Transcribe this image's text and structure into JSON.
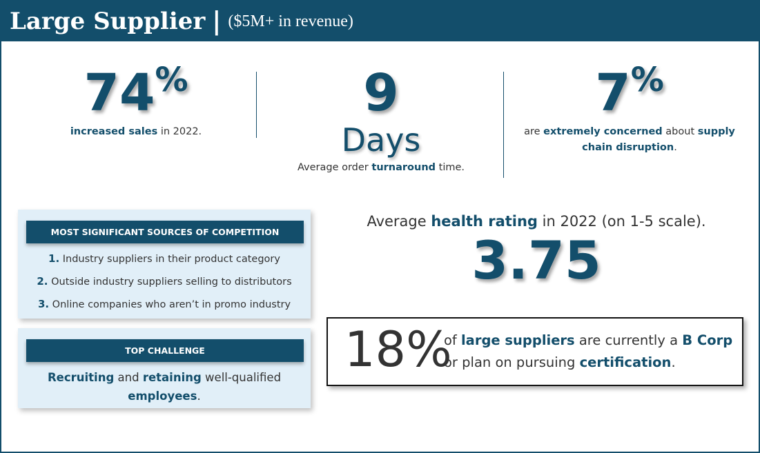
{
  "header": {
    "title": "Large Supplier",
    "separator": "|",
    "subtitle": "($5M+ in revenue)"
  },
  "stats": {
    "sales": {
      "value": "74",
      "unit": "%",
      "caption_bold": "increased sales",
      "caption_rest": " in 2022."
    },
    "turnaround": {
      "value": "9",
      "unit": "Days",
      "caption_pre": "Average order ",
      "caption_bold": "turnaround",
      "caption_post": " time."
    },
    "concern": {
      "value": "7",
      "unit": "%",
      "caption_pre": "are ",
      "caption_bold1": "extremely concerned",
      "caption_mid": " about ",
      "caption_bold2": "supply chain disruption",
      "caption_post": "."
    }
  },
  "competition": {
    "heading": "MOST SIGNIFICANT SOURCES OF COMPETITION",
    "items": [
      {
        "num": "1.",
        "text": " Industry suppliers in their product category"
      },
      {
        "num": "2.",
        "text": " Outside industry suppliers selling to distributors"
      },
      {
        "num": "3.",
        "text": " Online companies who aren’t in promo industry"
      }
    ]
  },
  "challenge": {
    "heading": "TOP CHALLENGE",
    "bold1": "Recruiting",
    "mid1": " and ",
    "bold2": "retaining",
    "mid2": " well-qualified ",
    "bold3": "employees",
    "end": "."
  },
  "health": {
    "caption_pre": "Average ",
    "caption_bold": "health rating",
    "caption_post": " in 2022 (on 1-5 scale).",
    "value": "3.75"
  },
  "bcorp": {
    "value": "18%",
    "pre": "of ",
    "bold1": "large suppliers",
    "mid": " are currently a ",
    "bold2": "B Corp",
    "mid2": " or plan on pursuing ",
    "bold3": "certification",
    "end": "."
  },
  "colors": {
    "brand": "#134e6b",
    "panel": "#e1eff8"
  }
}
